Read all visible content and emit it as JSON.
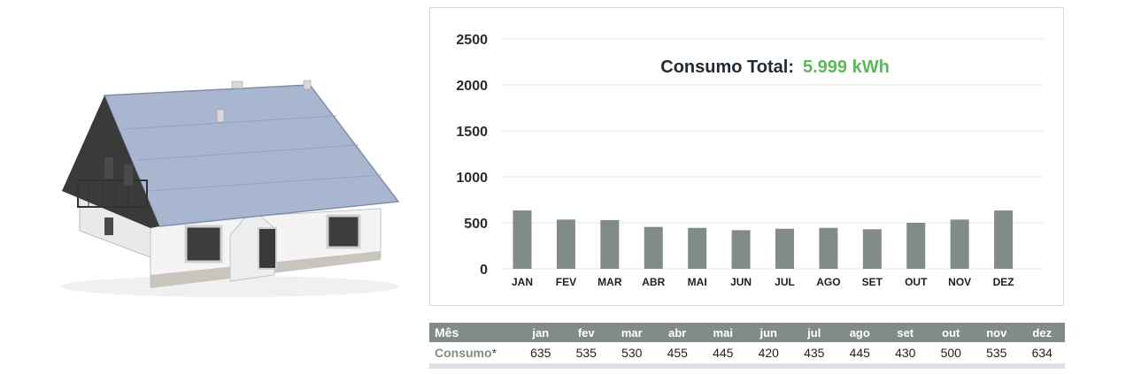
{
  "chart_data": {
    "type": "bar",
    "categories": [
      "JAN",
      "FEV",
      "MAR",
      "ABR",
      "MAI",
      "JUN",
      "JUL",
      "AGO",
      "SET",
      "OUT",
      "NOV",
      "DEZ"
    ],
    "values": [
      635,
      535,
      530,
      455,
      445,
      420,
      435,
      445,
      430,
      500,
      535,
      634
    ],
    "ylim": [
      0,
      2500
    ],
    "yticks": [
      0,
      500,
      1000,
      1500,
      2000,
      2500
    ],
    "grid": true,
    "bar_color": "#818c89",
    "annotation": {
      "label": "Consumo Total:",
      "value": "5.999 kWh",
      "value_color": "#5cb85c"
    }
  },
  "table": {
    "header_first": "Mês",
    "months": [
      "jan",
      "fev",
      "mar",
      "abr",
      "mai",
      "jun",
      "jul",
      "ago",
      "set",
      "out",
      "nov",
      "dez"
    ],
    "row_label": "Consumo",
    "row_label_suffix": "*",
    "values": [
      "635",
      "535",
      "530",
      "455",
      "445",
      "420",
      "435",
      "445",
      "430",
      "500",
      "535",
      "634"
    ]
  },
  "illustration": {
    "icon": "house-icon"
  }
}
